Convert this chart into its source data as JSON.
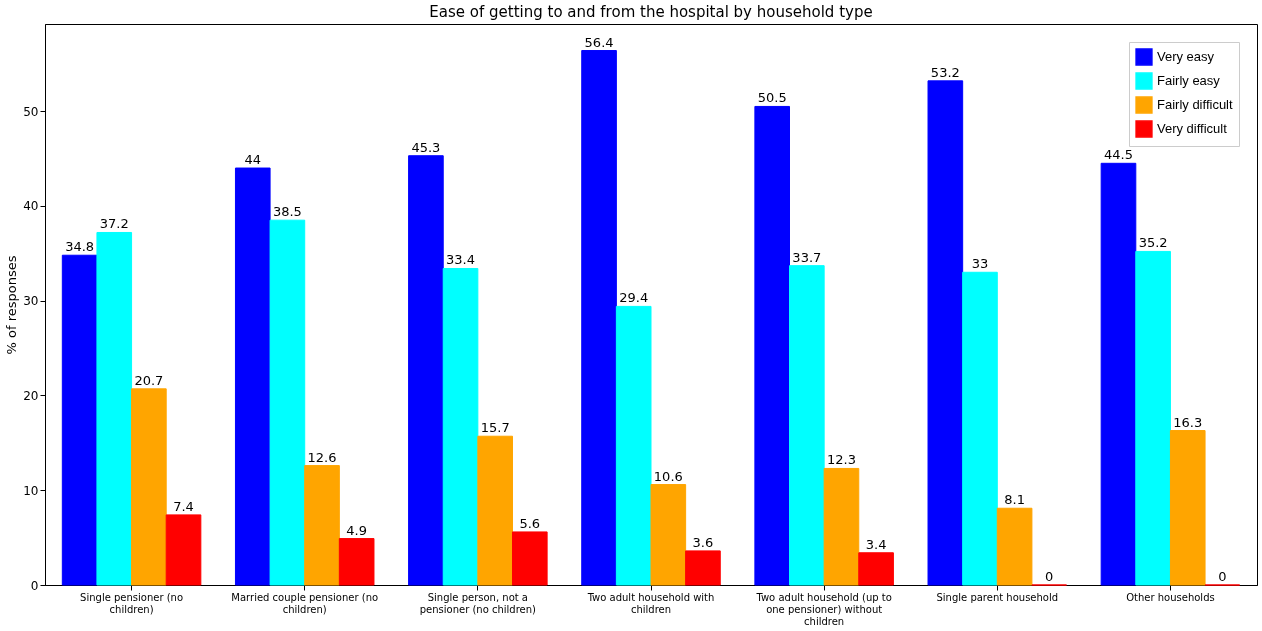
{
  "chart_data": {
    "type": "bar",
    "title": "Ease of getting to and from the hospital by household type",
    "ylabel": "% of responses",
    "categories": [
      "Single pensioner (no children)",
      "Married couple pensioner (no children)",
      "Single person, not a pensioner (no children)",
      "Two adult household with children",
      "Two adult household (up to one pensioner) without children",
      "Single parent household",
      "Other households"
    ],
    "series": [
      {
        "name": "Very easy",
        "color": "#0000ff",
        "values": [
          34.8,
          44,
          45.3,
          56.4,
          50.5,
          53.2,
          44.5
        ]
      },
      {
        "name": "Fairly easy",
        "color": "#00ffff",
        "values": [
          37.2,
          38.5,
          33.4,
          29.4,
          33.7,
          33,
          35.2
        ]
      },
      {
        "name": "Fairly difficult",
        "color": "#ffa500",
        "values": [
          20.7,
          12.6,
          15.7,
          10.6,
          12.3,
          8.1,
          16.3
        ]
      },
      {
        "name": "Very difficult",
        "color": "#ff0000",
        "values": [
          7.4,
          4.9,
          5.6,
          3.6,
          3.4,
          0,
          0
        ]
      }
    ],
    "ylim": [
      0,
      59.2
    ],
    "yticks": [
      0,
      10,
      20,
      30,
      40,
      50
    ],
    "grid": false,
    "legend": "top right",
    "data_labels": true
  }
}
